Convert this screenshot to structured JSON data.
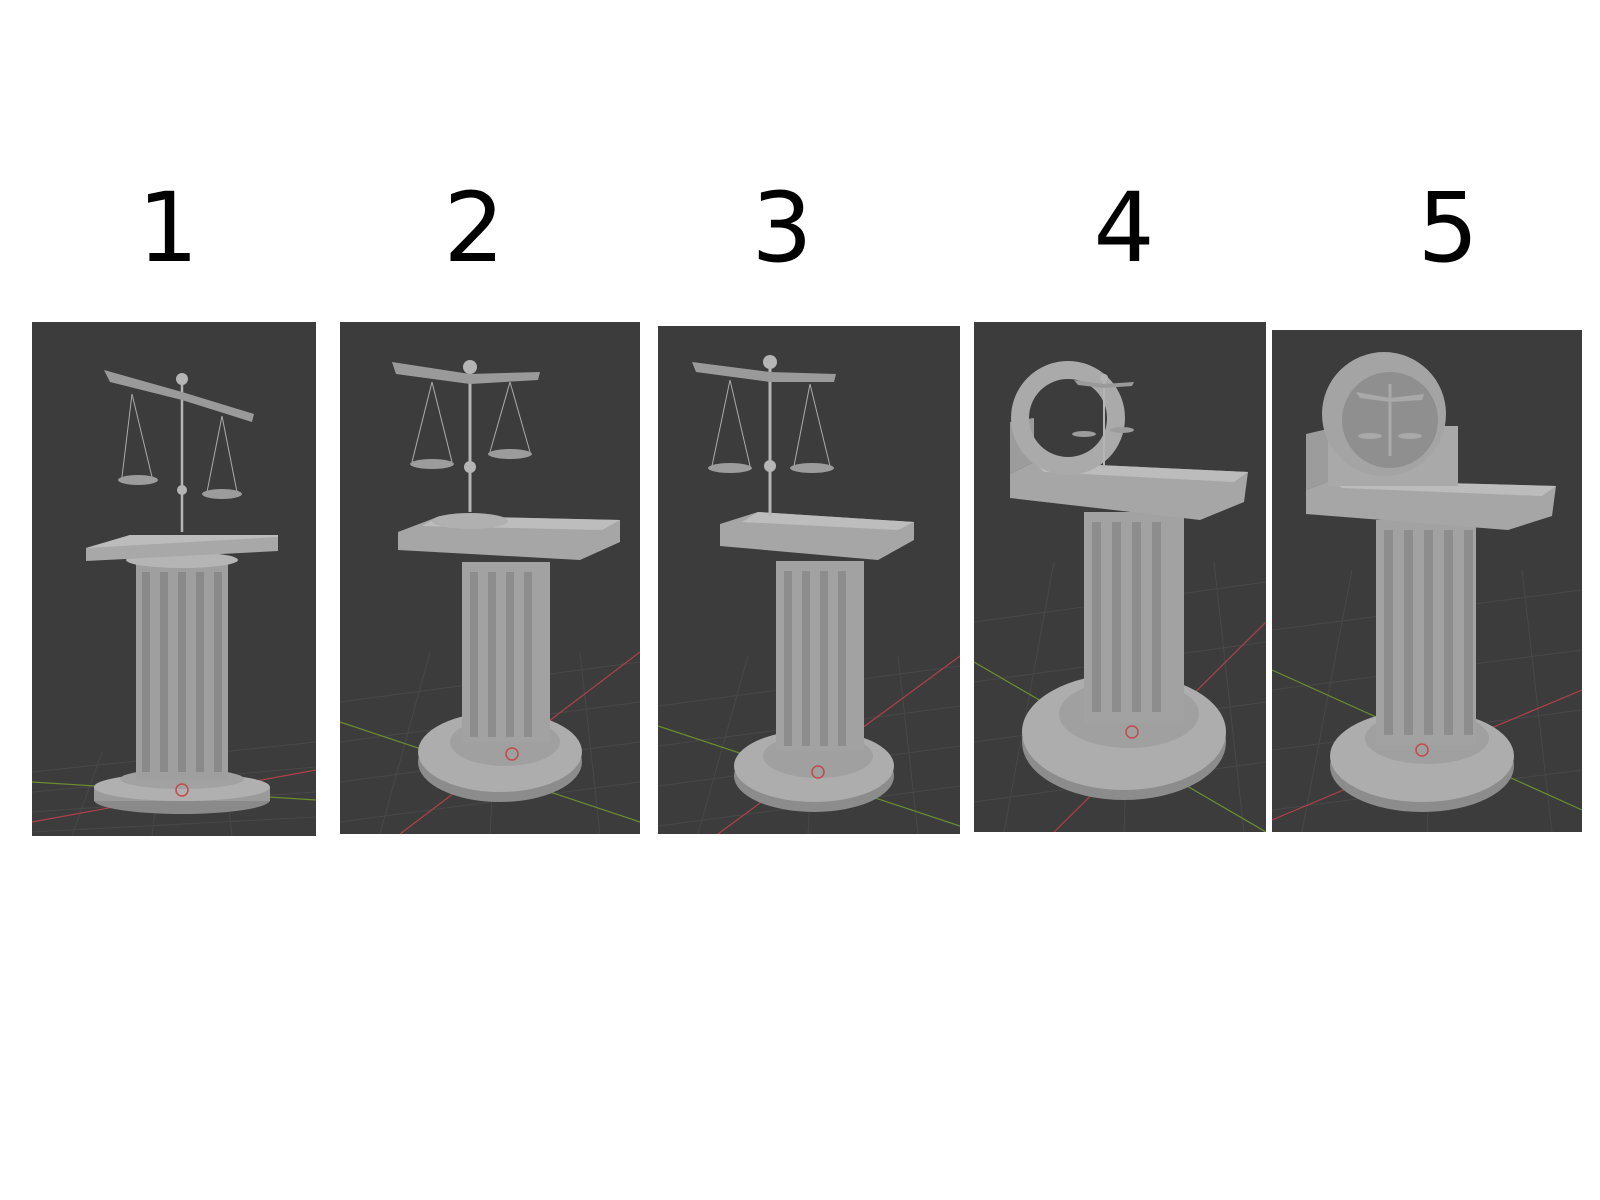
{
  "panels": [
    {
      "label": "1",
      "variant": "scales-on-slab"
    },
    {
      "label": "2",
      "variant": "scales-on-lectern"
    },
    {
      "label": "3",
      "variant": "scales-on-lectern-refined"
    },
    {
      "label": "4",
      "variant": "ring-frame-with-scales"
    },
    {
      "label": "5",
      "variant": "ring-frame-with-emblem"
    }
  ],
  "colors": {
    "viewport_bg": "#3c3c3c",
    "model_light": "#a9a9a9",
    "model_mid": "#8e8e8e",
    "model_dark": "#6f6f6f",
    "grid_line": "#464646",
    "axis_x": "#b0414b",
    "axis_y": "#6b8f2f"
  }
}
